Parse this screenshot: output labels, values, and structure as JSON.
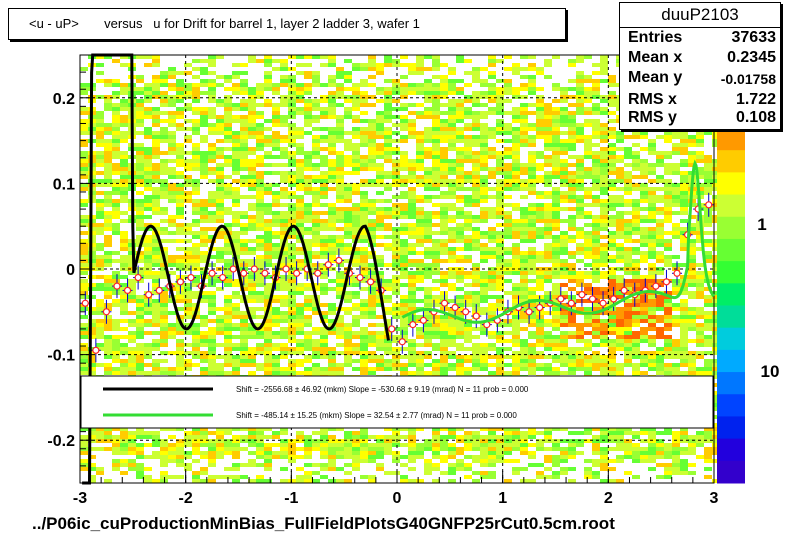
{
  "title": "<u - uP>       versus   u for Drift for barrel 1, layer 2 ladder 3, wafer 1",
  "footer": "../P06ic_cuProductionMinBias_FullFieldPlotsG40GNFP25rCut0.5cm.root",
  "stats": {
    "name": "duuP2103",
    "rows": [
      {
        "label": "Entries",
        "value": "37633"
      },
      {
        "label": "Mean x",
        "value": "0.2345"
      },
      {
        "label": "Mean y",
        "value": "-0.01758"
      },
      {
        "label": "RMS x",
        "value": "1.722"
      },
      {
        "label": "RMS y",
        "value": "0.108"
      }
    ]
  },
  "legend": {
    "black_text": "Shift =  -2556.68 ± 46.92 (mkm) Slope =   -530.68 ± 9.19 (mrad)  N = 11 prob = 0.000",
    "green_text": "Shift =   -485.14 ± 15.25 (mkm) Slope =     32.54 ± 2.77 (mrad)  N = 11 prob = 0.000"
  },
  "colors": {
    "black_fit": "#000000",
    "green_fit": "#33dd33",
    "points": "#ff2222",
    "error_bars": "#0000cc"
  },
  "chart_data": {
    "type": "heatmap",
    "title": "<u - uP>       versus   u for Drift for barrel 1, layer 2 ladder 3, wafer 1",
    "xlabel": "",
    "ylabel": "",
    "xlim": [
      -3,
      3
    ],
    "ylim": [
      -0.25,
      0.25
    ],
    "x_ticks": [
      -3,
      -2,
      -1,
      0,
      1,
      2,
      3
    ],
    "y_ticks": [
      -0.2,
      -0.1,
      0,
      0.1,
      0.2
    ],
    "x_tick_labels": [
      "-3",
      "-2",
      "-1",
      "0",
      "1",
      "2",
      "3"
    ],
    "y_tick_labels": [
      "-0.2",
      "-0.1",
      "0",
      "0.1",
      "0.2"
    ],
    "palette_labels": [
      "1",
      "10"
    ],
    "grid": true,
    "profile_points": {
      "x": [
        -2.95,
        -2.85,
        -2.75,
        -2.65,
        -2.55,
        -2.45,
        -2.35,
        -2.25,
        -2.15,
        -2.05,
        -1.95,
        -1.85,
        -1.75,
        -1.65,
        -1.55,
        -1.45,
        -1.35,
        -1.25,
        -1.15,
        -1.05,
        -0.95,
        -0.85,
        -0.75,
        -0.65,
        -0.55,
        -0.45,
        -0.35,
        -0.25,
        -0.15,
        -0.05,
        0.05,
        0.15,
        0.25,
        0.35,
        0.45,
        0.55,
        0.65,
        0.75,
        0.85,
        0.95,
        1.05,
        1.15,
        1.25,
        1.35,
        1.45,
        1.55,
        1.65,
        1.75,
        1.85,
        1.95,
        2.05,
        2.15,
        2.25,
        2.35,
        2.45,
        2.55,
        2.65,
        2.75,
        2.85,
        2.95
      ],
      "y": [
        -0.04,
        -0.095,
        -0.05,
        -0.02,
        -0.025,
        -0.01,
        -0.03,
        -0.025,
        -0.02,
        -0.015,
        -0.01,
        -0.02,
        -0.005,
        -0.01,
        0.0,
        -0.005,
        0.0,
        -0.005,
        -0.01,
        0.0,
        -0.005,
        0.0,
        -0.005,
        0.005,
        0.01,
        -0.005,
        -0.01,
        -0.015,
        -0.025,
        -0.07,
        -0.085,
        -0.065,
        -0.06,
        -0.05,
        -0.04,
        -0.045,
        -0.05,
        -0.055,
        -0.065,
        -0.06,
        -0.05,
        -0.045,
        -0.05,
        -0.045,
        -0.04,
        -0.035,
        -0.04,
        -0.03,
        -0.035,
        -0.04,
        -0.035,
        -0.025,
        -0.03,
        -0.025,
        -0.02,
        -0.015,
        -0.005,
        0.04,
        0.07,
        0.075
      ]
    },
    "fits": [
      {
        "color": "black",
        "shift_mkm": -2556.68,
        "shift_err": 46.92,
        "slope_mrad": -530.68,
        "slope_err": 9.19,
        "N": 11,
        "prob": 0.0
      },
      {
        "color": "green",
        "shift_mkm": -485.14,
        "shift_err": 15.25,
        "slope_mrad": 32.54,
        "slope_err": 2.77,
        "N": 11,
        "prob": 0.0
      }
    ]
  }
}
